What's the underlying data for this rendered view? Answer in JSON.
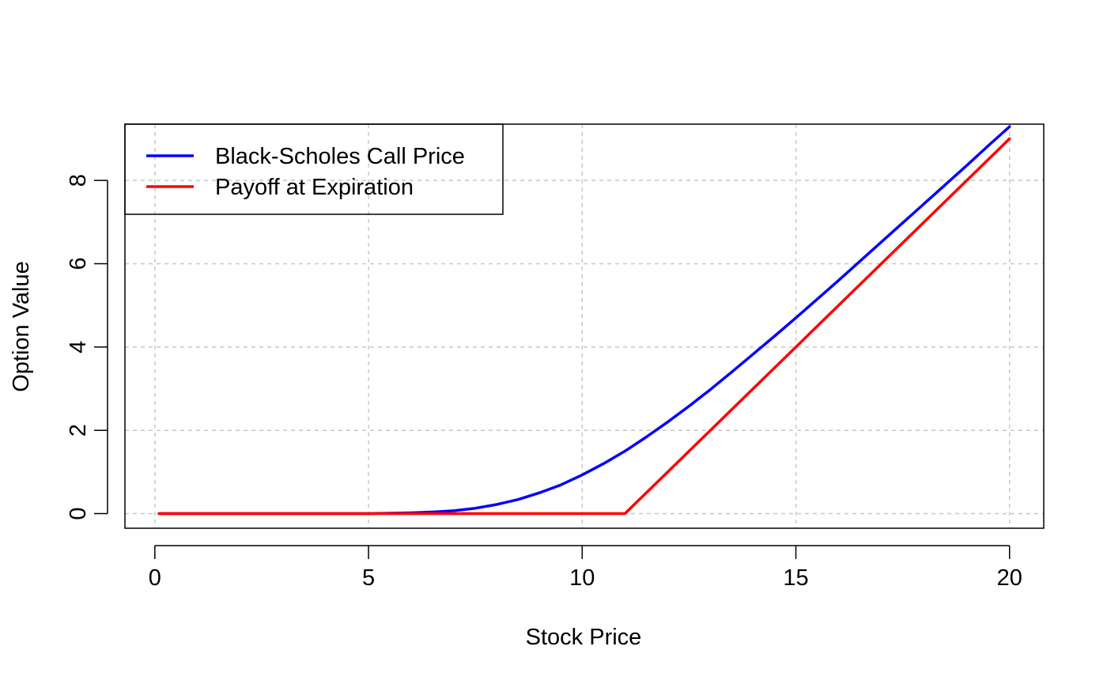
{
  "chart_data": {
    "type": "line",
    "title": "",
    "xlabel": "Stock Price",
    "ylabel": "Option Value",
    "xlim": [
      -0.7,
      20.8
    ],
    "ylim": [
      -0.35,
      9.35
    ],
    "xticks": [
      0,
      5,
      10,
      15,
      20
    ],
    "yticks": [
      0,
      2,
      4,
      6,
      8
    ],
    "grid": true,
    "legend_position": "top-left",
    "series": [
      {
        "name": "Black-Scholes Call Price",
        "color": "#0000ff",
        "x": [
          0.1,
          2,
          4,
          5,
          6,
          6.5,
          7,
          7.5,
          8,
          8.5,
          9,
          9.5,
          10,
          10.5,
          11,
          11.5,
          12,
          12.5,
          13,
          13.5,
          14,
          14.5,
          15,
          15.5,
          16,
          16.5,
          17,
          17.5,
          18,
          18.5,
          19,
          19.5,
          20
        ],
        "y": [
          0,
          0,
          0,
          0,
          0.02,
          0.04,
          0.07,
          0.13,
          0.22,
          0.34,
          0.5,
          0.69,
          0.93,
          1.2,
          1.5,
          1.84,
          2.2,
          2.58,
          2.98,
          3.4,
          3.83,
          4.26,
          4.7,
          5.15,
          5.6,
          6.06,
          6.52,
          6.98,
          7.44,
          7.9,
          8.36,
          8.83,
          9.29
        ]
      },
      {
        "name": "Payoff at Expiration",
        "color": "#ff0000",
        "x": [
          0.1,
          11,
          20
        ],
        "y": [
          0,
          0,
          9
        ]
      }
    ]
  }
}
